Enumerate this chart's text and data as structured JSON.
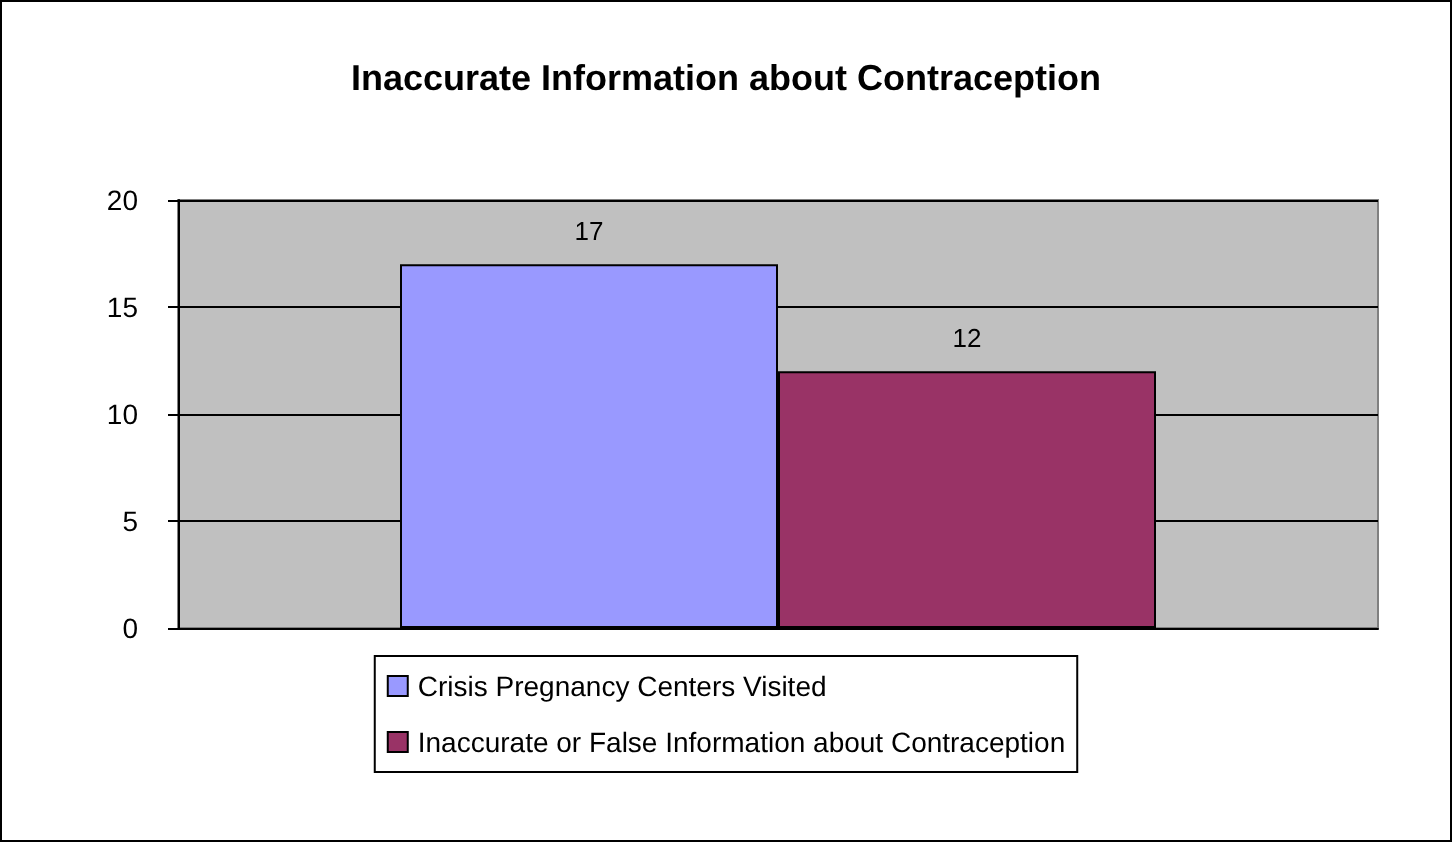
{
  "chart_data": {
    "type": "bar",
    "title": "Inaccurate Information about Contraception",
    "categories": [
      null
    ],
    "series": [
      {
        "name": "Crisis Pregnancy Centers Visited",
        "color": "#9999ff",
        "values": [
          17
        ]
      },
      {
        "name": "Inaccurate or False Information about Contraception",
        "color": "#993366",
        "values": [
          12
        ]
      }
    ],
    "ylim": [
      0,
      20
    ],
    "yticks": [
      0,
      5,
      10,
      15,
      20
    ],
    "grid": "y",
    "legend": "bottom",
    "data_labels": true
  }
}
